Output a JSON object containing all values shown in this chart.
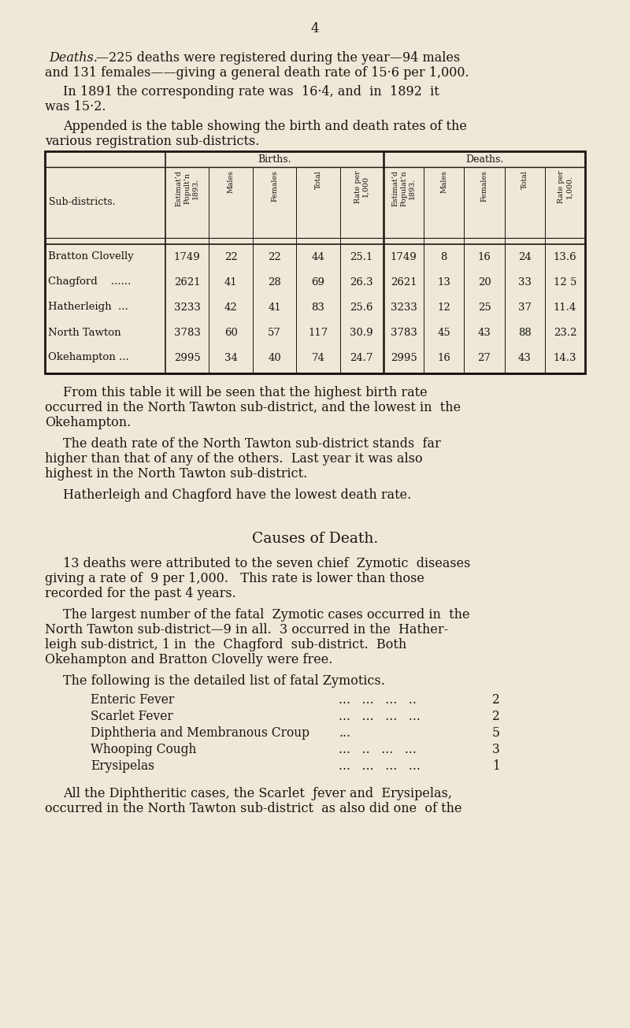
{
  "bg_color": "#ede8d8",
  "text_color": "#1a1510",
  "page_number": "4",
  "table_rows": [
    [
      "Bratton Clovelly",
      "1749",
      "22",
      "22",
      "44",
      "25.1",
      "1749",
      "8",
      "16",
      "24",
      "13.6"
    ],
    [
      "Chagford    ......",
      "2621",
      "41",
      "28",
      "69",
      "26.3",
      "2621",
      "13",
      "20",
      "33",
      "12 5"
    ],
    [
      "Hatherleigh  ...",
      "3233",
      "42",
      "41",
      "83",
      "25.6",
      "3233",
      "12",
      "25",
      "37",
      "11.4"
    ],
    [
      "North Tawton",
      "3783",
      "60",
      "57",
      "117",
      "30.9",
      "3783",
      "45",
      "43",
      "88",
      "23.2"
    ],
    [
      "Okehampton ...",
      "2995",
      "34",
      "40",
      "74",
      "24.7",
      "2995",
      "16",
      "27",
      "43",
      "14.3"
    ]
  ],
  "birth_headers": [
    "Estimat’d\nPopult’n\n1893.",
    "Males",
    "Females",
    "Total",
    "Rate per\n1,000"
  ],
  "death_headers": [
    "Estimat’d\nPopulat’n\n1893.",
    "Males",
    "Females",
    "Total",
    "Rate per\n1,000."
  ],
  "zymotic_items": [
    [
      "Enteric Fever",
      "...   ...   ...   ..",
      "2"
    ],
    [
      "Scarlet Fever",
      "...   ...   ...   ...",
      "2"
    ],
    [
      "Diphtheria and Membranous Croup",
      "...",
      "5"
    ],
    [
      "Whooping Cough",
      "...   ..   ...   ...",
      "3"
    ],
    [
      "Erysipelas",
      "...   ...   ...   ...",
      "1"
    ]
  ]
}
